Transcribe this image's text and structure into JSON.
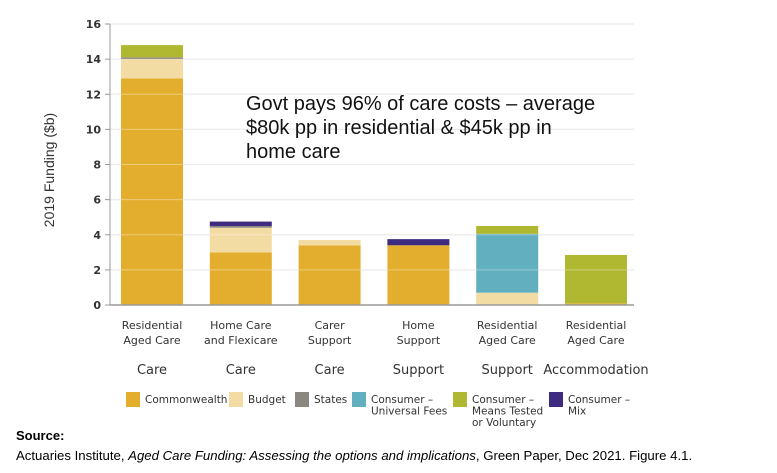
{
  "chart_data": {
    "type": "bar",
    "stacked": true,
    "title": "",
    "ylabel": "2019   Funding ($b)",
    "xlabel": "",
    "ylim": [
      0,
      16
    ],
    "yticks": [
      0,
      2,
      4,
      6,
      8,
      10,
      12,
      14,
      16
    ],
    "grid": true,
    "categories": [
      {
        "label": [
          "Residential",
          "Aged Care"
        ],
        "group": "Care"
      },
      {
        "label": [
          "Home Care",
          "and Flexicare"
        ],
        "group": "Care"
      },
      {
        "label": [
          "Carer",
          "Support"
        ],
        "group": "Care"
      },
      {
        "label": [
          "Home",
          "Support"
        ],
        "group": "Support"
      },
      {
        "label": [
          "Residential",
          "Aged Care"
        ],
        "group": "Support"
      },
      {
        "label": [
          "Residential",
          "Aged Care"
        ],
        "group": "Accommodation"
      }
    ],
    "series": [
      {
        "name": "Commonwealth",
        "legend": [
          "Commonwealth"
        ],
        "color": "#e3ae2e",
        "values": [
          12.9,
          3.0,
          3.4,
          3.4,
          0.0,
          0.1
        ]
      },
      {
        "name": "Budget",
        "legend": [
          "Budget"
        ],
        "color": "#f3dca3",
        "values": [
          1.1,
          1.4,
          0.3,
          0.0,
          0.7,
          0.0
        ]
      },
      {
        "name": "States",
        "legend": [
          "States"
        ],
        "color": "#8a8680",
        "values": [
          0.1,
          0.1,
          0.0,
          0.0,
          0.0,
          0.0
        ]
      },
      {
        "name": "Consumer – Universal Fees",
        "legend": [
          "Consumer –",
          "Universal Fees"
        ],
        "color": "#62b0bf",
        "values": [
          0.0,
          0.0,
          0.0,
          0.0,
          3.35,
          0.0
        ]
      },
      {
        "name": "Consumer – Means Tested or Voluntary",
        "legend": [
          "Consumer –",
          "Means Tested",
          "or Voluntary"
        ],
        "color": "#b0b832",
        "values": [
          0.7,
          0.0,
          0.0,
          0.0,
          0.45,
          2.75
        ]
      },
      {
        "name": "Consumer – Mix",
        "legend": [
          "Consumer –",
          "Mix"
        ],
        "color": "#3e2a7e",
        "values": [
          0.0,
          0.25,
          0.0,
          0.35,
          0.0,
          0.0
        ]
      }
    ],
    "annotation": [
      "Govt pays 96% of care costs – average",
      "$80k pp in residential & $45k pp in",
      "home care"
    ],
    "legend_position": "bottom"
  },
  "source": {
    "label": "Source:",
    "prefix": "Actuaries Institute, ",
    "title_italic": "Aged Care Funding: Assessing the options and implications",
    "suffix": ", Green Paper, Dec 2021. Figure 4.1."
  }
}
